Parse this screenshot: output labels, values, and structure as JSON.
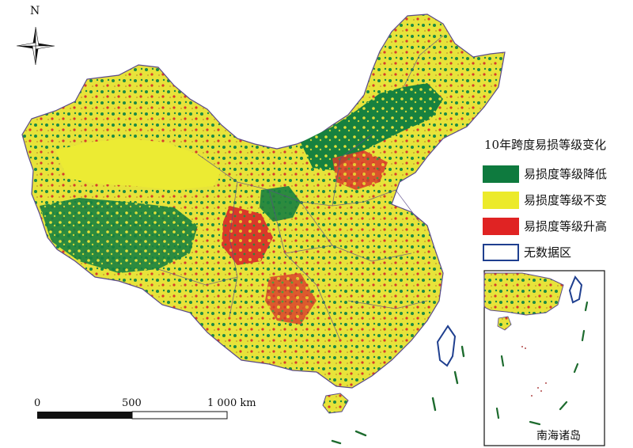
{
  "map": {
    "north_label": "N",
    "legend": {
      "title": "10年跨度易损等级变化",
      "items": [
        {
          "label": "易损度等级降低",
          "color": "#0e7a3e",
          "border": "#0e7a3e"
        },
        {
          "label": "易损度等级不变",
          "color": "#ecea2a",
          "border": "#ecea2a"
        },
        {
          "label": "易损度等级升高",
          "color": "#e02323",
          "border": "#e02323"
        },
        {
          "label": "无数据区",
          "color": "#ffffff",
          "border": "#1f3f8f"
        }
      ]
    },
    "scale_bar": {
      "ticks": [
        "0",
        "500",
        "1 000 km"
      ]
    },
    "inset_label": "南海诸岛"
  }
}
